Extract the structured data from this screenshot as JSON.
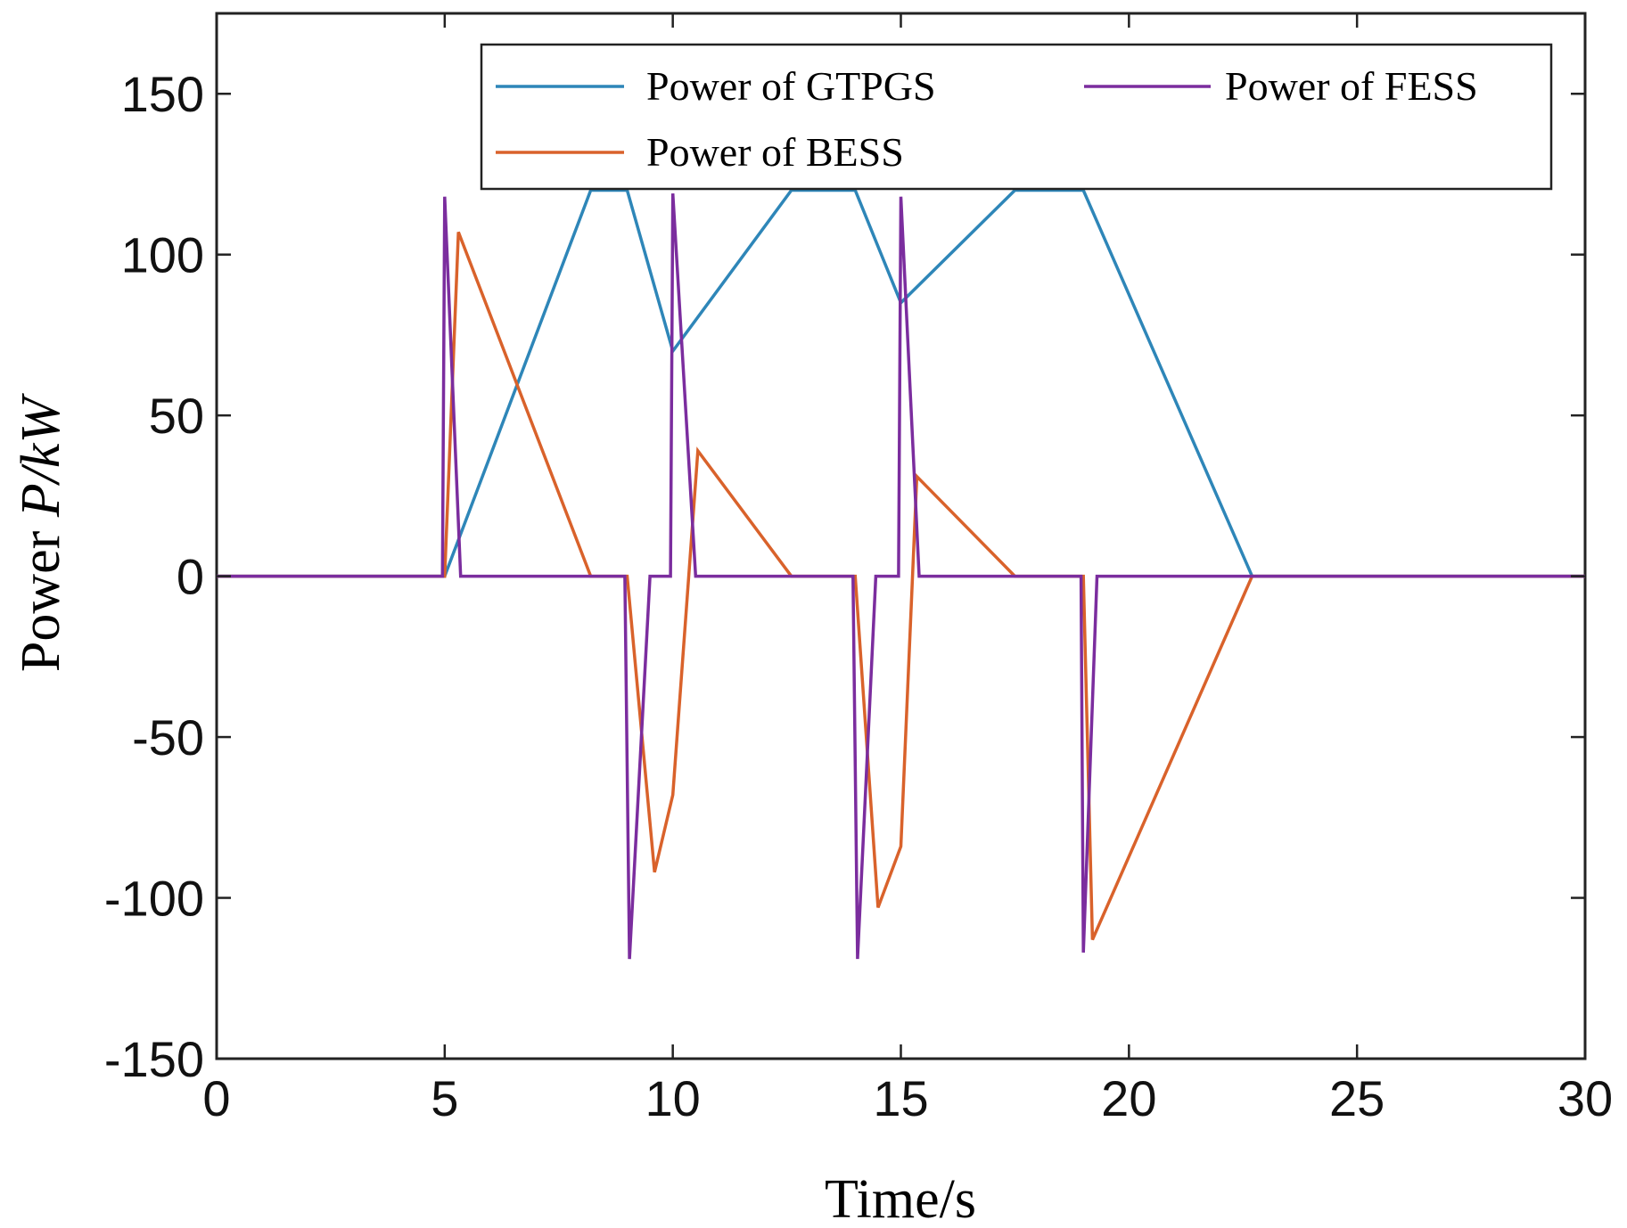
{
  "chart_data": {
    "type": "line",
    "title": "",
    "xlabel": "Time/s",
    "ylabel_prefix": "Power ",
    "ylabel_symbol": "P/kW",
    "xlim": [
      0,
      30
    ],
    "ylim": [
      -150,
      175
    ],
    "xticks": [
      0,
      5,
      10,
      15,
      20,
      25,
      30
    ],
    "yticks": [
      -150,
      -100,
      -50,
      0,
      50,
      100,
      150
    ],
    "grid": false,
    "legend_position": "top-right",
    "series": [
      {
        "name": "Power of GTPGS",
        "color": "#2e86b8",
        "points": [
          [
            0,
            0
          ],
          [
            5,
            0
          ],
          [
            8.2,
            120
          ],
          [
            9,
            120
          ],
          [
            10,
            70
          ],
          [
            12.6,
            120
          ],
          [
            14,
            120
          ],
          [
            15,
            85
          ],
          [
            17.5,
            120
          ],
          [
            19,
            120
          ],
          [
            22.7,
            0
          ],
          [
            30,
            0
          ]
        ]
      },
      {
        "name": "Power of BESS",
        "color": "#d9622b",
        "points": [
          [
            0,
            0
          ],
          [
            5,
            0
          ],
          [
            5.3,
            107
          ],
          [
            8.2,
            0
          ],
          [
            9,
            0
          ],
          [
            9.6,
            -92
          ],
          [
            10,
            -68
          ],
          [
            10.55,
            39
          ],
          [
            12.6,
            0
          ],
          [
            14,
            0
          ],
          [
            14.5,
            -103
          ],
          [
            15,
            -84
          ],
          [
            15.35,
            31
          ],
          [
            17.5,
            0
          ],
          [
            19,
            0
          ],
          [
            19.2,
            -113
          ],
          [
            22.7,
            0
          ],
          [
            30,
            0
          ]
        ]
      },
      {
        "name": "Power of FESS",
        "color": "#7b2d9e",
        "points": [
          [
            0,
            0
          ],
          [
            4.95,
            0
          ],
          [
            5,
            118
          ],
          [
            5.35,
            0
          ],
          [
            8.95,
            0
          ],
          [
            9.05,
            -119
          ],
          [
            9.5,
            0
          ],
          [
            9.95,
            0
          ],
          [
            10,
            119
          ],
          [
            10.5,
            0
          ],
          [
            13.95,
            0
          ],
          [
            14.05,
            -119
          ],
          [
            14.45,
            0
          ],
          [
            14.95,
            0
          ],
          [
            15,
            118
          ],
          [
            15.4,
            0
          ],
          [
            18.95,
            0
          ],
          [
            19,
            -117
          ],
          [
            19.3,
            0
          ],
          [
            30,
            0
          ]
        ]
      }
    ]
  }
}
